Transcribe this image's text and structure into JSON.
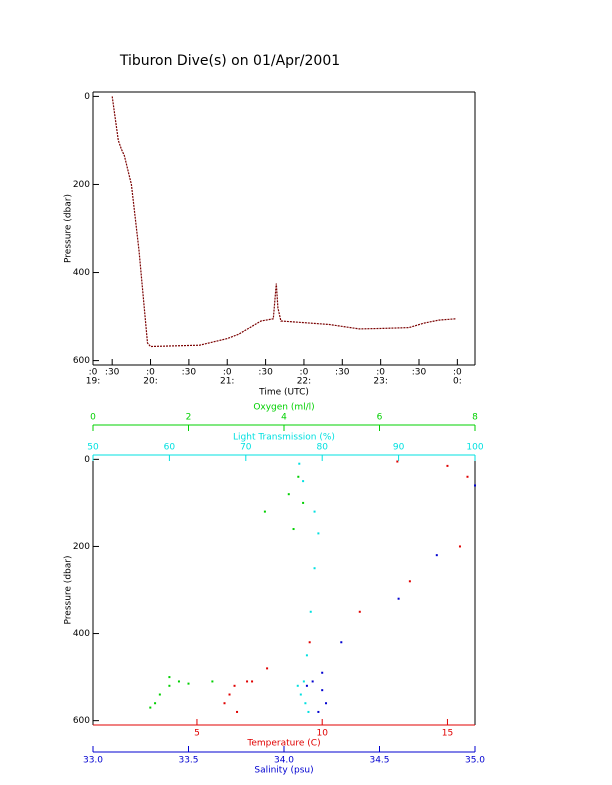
{
  "title": "Tiburon Dive(s) on 01/Apr/2001",
  "chart_data": [
    {
      "type": "line",
      "x_label": "Time (UTC)",
      "y_label": "Pressure (dbar)",
      "xlim": [
        19.25,
        24.23
      ],
      "ylim": [
        -10,
        610
      ],
      "y_inverted": true,
      "xticks": [
        {
          "value": 19.25,
          "label": ":0",
          "hour": "19:"
        },
        {
          "value": 19.5,
          "label": ":30"
        },
        {
          "value": 20,
          "label": ":0",
          "hour": "20:"
        },
        {
          "value": 20.5,
          "label": ":30"
        },
        {
          "value": 21,
          "label": ":0",
          "hour": "21:"
        },
        {
          "value": 21.5,
          "label": ":30"
        },
        {
          "value": 22,
          "label": ":0",
          "hour": "22:"
        },
        {
          "value": 22.5,
          "label": ":30"
        },
        {
          "value": 23,
          "label": ":0",
          "hour": "23:"
        },
        {
          "value": 23.5,
          "label": ":30"
        },
        {
          "value": 24,
          "label": ":0",
          "hour": "0:"
        }
      ],
      "yticks": [
        0,
        200,
        400,
        600
      ],
      "series": [
        {
          "color": "#7a0000",
          "x": [
            19.5,
            19.58,
            19.62,
            19.66,
            19.75,
            19.85,
            19.96,
            20.0,
            20.64,
            21.0,
            21.15,
            21.44,
            21.6,
            21.64,
            21.66,
            21.7,
            21.94,
            22.33,
            22.72,
            22.98,
            23.37,
            23.56,
            23.76,
            23.98
          ],
          "values": [
            0,
            100,
            120,
            135,
            200,
            350,
            560,
            568,
            565,
            550,
            540,
            510,
            505,
            425,
            480,
            510,
            513,
            518,
            528,
            527,
            525,
            515,
            508,
            505
          ]
        }
      ]
    },
    {
      "type": "scatter",
      "y_label": "Pressure (dbar)",
      "ylim": [
        -10,
        610
      ],
      "y_inverted": true,
      "yticks": [
        0,
        200,
        400,
        600
      ],
      "axes": [
        {
          "label": "Oxygen (ml/l)",
          "color": "#00d000",
          "position": "top",
          "xlim": [
            0,
            8
          ],
          "xticks": [
            0,
            2,
            4,
            6,
            8
          ],
          "series": {
            "x": [
              4.3,
              4.1,
              3.6,
              4.4,
              4.2,
              2.5,
              1.8,
              1.6,
              1.4,
              1.3,
              1.2,
              1.6,
              2.0
            ],
            "y": [
              40,
              80,
              120,
              100,
              160,
              510,
              510,
              520,
              540,
              560,
              570,
              500,
              515
            ]
          }
        },
        {
          "label": "Light Transmission (%)",
          "color": "#00e0e0",
          "position": "top",
          "xlim": [
            50,
            100
          ],
          "xticks": [
            50,
            60,
            70,
            80,
            90,
            100
          ],
          "series": {
            "x": [
              77,
              77.5,
              79,
              79.5,
              79,
              78.5,
              78,
              77.6,
              77.2,
              77.8,
              78.2,
              76.8
            ],
            "y": [
              10,
              50,
              120,
              170,
              250,
              350,
              450,
              510,
              540,
              560,
              580,
              520
            ]
          }
        },
        {
          "label": "Temperature (C)",
          "color": "#e00000",
          "position": "bottom",
          "xlim": [
            0.85,
            16.1
          ],
          "xticks": [
            5,
            10,
            15
          ],
          "series": {
            "x": [
              13,
              15,
              15.8,
              15.5,
              13.5,
              11.5,
              9.5,
              7.8,
              7.0,
              6.5,
              6.3,
              6.1,
              6.6,
              7.2
            ],
            "y": [
              5,
              15,
              40,
              200,
              280,
              350,
              420,
              480,
              510,
              520,
              540,
              560,
              580,
              510
            ]
          }
        },
        {
          "label": "Salinity (psu)",
          "color": "#0000d0",
          "position": "bottom",
          "xlim": [
            33,
            35
          ],
          "xticks": [
            {
              "value": 33,
              "label": "33.0"
            },
            33.5,
            {
              "value": 34,
              "label": "34.0"
            },
            34.5,
            {
              "value": 35,
              "label": "35.0"
            }
          ],
          "series": {
            "x": [
              35.0,
              34.8,
              34.6,
              34.3,
              34.2,
              34.15,
              34.2,
              34.22,
              34.18,
              34.12
            ],
            "y": [
              60,
              220,
              320,
              420,
              490,
              510,
              530,
              560,
              580,
              520
            ]
          }
        }
      ]
    }
  ]
}
